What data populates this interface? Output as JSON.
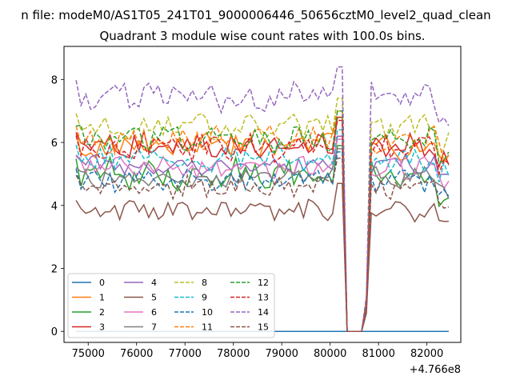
{
  "chart_data": {
    "type": "line",
    "suptitle": "n file: modeM0/AS1T05_241T01_9000006446_50656cztM0_level2_quad_clean",
    "title": "Quadrant 3 module wise count rates with 100.0s bins.",
    "xlabel": "",
    "ylabel": "",
    "x_offset_label": "+4.766e8",
    "xlim": [
      74500,
      82700
    ],
    "ylim": [
      -0.35,
      9.05
    ],
    "xticks": [
      75000,
      76000,
      77000,
      78000,
      79000,
      80000,
      81000,
      82000
    ],
    "xtick_labels": [
      "75000",
      "76000",
      "77000",
      "78000",
      "79000",
      "80000",
      "81000",
      "82000"
    ],
    "yticks": [
      0,
      2,
      4,
      6,
      8
    ],
    "ytick_labels": [
      "0",
      "2",
      "4",
      "6",
      "8"
    ],
    "x_range": [
      74750,
      82450
    ],
    "bin_seconds": 100,
    "gap": [
      80350,
      80650
    ],
    "legend_location": "lower-left",
    "legend_columns": 4,
    "series": [
      {
        "name": "0",
        "color": "#1f77b4",
        "dash": "solid",
        "level": 0.0,
        "spread": 0.0,
        "seed": 1
      },
      {
        "name": "1",
        "color": "#ff7f0e",
        "dash": "solid",
        "level": 5.9,
        "spread": 0.35,
        "seed": 2
      },
      {
        "name": "2",
        "color": "#2ca02c",
        "dash": "solid",
        "level": 5.0,
        "spread": 0.4,
        "seed": 3
      },
      {
        "name": "3",
        "color": "#d62728",
        "dash": "solid",
        "level": 5.9,
        "spread": 0.35,
        "seed": 4
      },
      {
        "name": "4",
        "color": "#9467bd",
        "dash": "solid",
        "level": 5.3,
        "spread": 0.25,
        "seed": 5
      },
      {
        "name": "5",
        "color": "#8c564b",
        "dash": "solid",
        "level": 3.8,
        "spread": 0.3,
        "seed": 6
      },
      {
        "name": "6",
        "color": "#e377c2",
        "dash": "solid",
        "level": 5.2,
        "spread": 0.3,
        "seed": 7
      },
      {
        "name": "7",
        "color": "#7f7f7f",
        "dash": "solid",
        "level": 4.9,
        "spread": 0.25,
        "seed": 8
      },
      {
        "name": "8",
        "color": "#bcbd22",
        "dash": "dashed",
        "level": 6.5,
        "spread": 0.35,
        "seed": 9
      },
      {
        "name": "9",
        "color": "#17becf",
        "dash": "dashed",
        "level": 5.5,
        "spread": 0.35,
        "seed": 10
      },
      {
        "name": "10",
        "color": "#1f77b4",
        "dash": "dashed",
        "level": 4.8,
        "spread": 0.3,
        "seed": 11
      },
      {
        "name": "11",
        "color": "#ff7f0e",
        "dash": "dashed",
        "level": 6.1,
        "spread": 0.35,
        "seed": 12
      },
      {
        "name": "12",
        "color": "#2ca02c",
        "dash": "dashed",
        "level": 6.1,
        "spread": 0.35,
        "seed": 13
      },
      {
        "name": "13",
        "color": "#d62728",
        "dash": "dashed",
        "level": 5.8,
        "spread": 0.35,
        "seed": 14
      },
      {
        "name": "14",
        "color": "#9467bd",
        "dash": "dashed",
        "level": 7.5,
        "spread": 0.4,
        "seed": 15
      },
      {
        "name": "15",
        "color": "#8c564b",
        "dash": "dashed",
        "level": 4.6,
        "spread": 0.3,
        "seed": 16
      }
    ]
  }
}
